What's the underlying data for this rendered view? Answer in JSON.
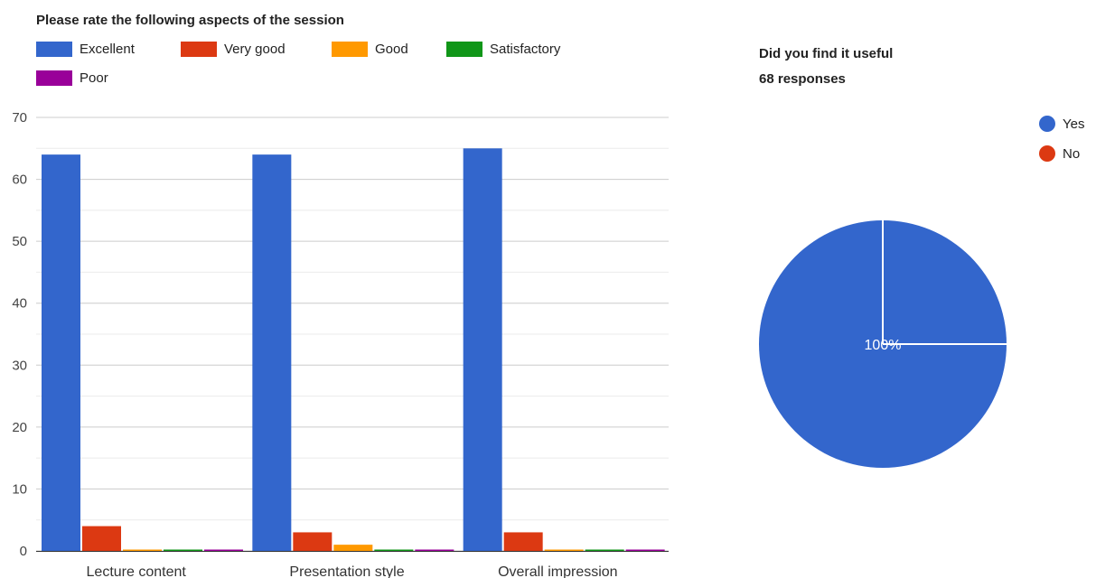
{
  "chart_data": [
    {
      "type": "bar",
      "title": "Please rate the following aspects of the session",
      "categories": [
        "Lecture content",
        "Presentation style",
        "Overall impression"
      ],
      "series": [
        {
          "name": "Excellent",
          "color": "#3366cc",
          "values": [
            64,
            64,
            65
          ]
        },
        {
          "name": "Very good",
          "color": "#dc3912",
          "values": [
            4,
            3,
            3
          ]
        },
        {
          "name": "Good",
          "color": "#ff9900",
          "values": [
            0,
            1,
            0
          ]
        },
        {
          "name": "Satisfactory",
          "color": "#109618",
          "values": [
            0,
            0,
            0
          ]
        },
        {
          "name": "Poor",
          "color": "#990099",
          "values": [
            0,
            0,
            0
          ]
        }
      ],
      "ylim": [
        0,
        70
      ],
      "yticks": [
        "0",
        "10",
        "20",
        "30",
        "40",
        "50",
        "60",
        "70"
      ],
      "grid": true,
      "legend_position": "top"
    },
    {
      "type": "pie",
      "title": "Did you find it useful",
      "subtitle": "68 responses",
      "slices": [
        {
          "label": "Yes",
          "value": 68,
          "color": "#3366cc"
        },
        {
          "label": "No",
          "value": 0,
          "color": "#dc3912"
        }
      ],
      "slice_label": "100%",
      "legend_position": "right"
    }
  ]
}
